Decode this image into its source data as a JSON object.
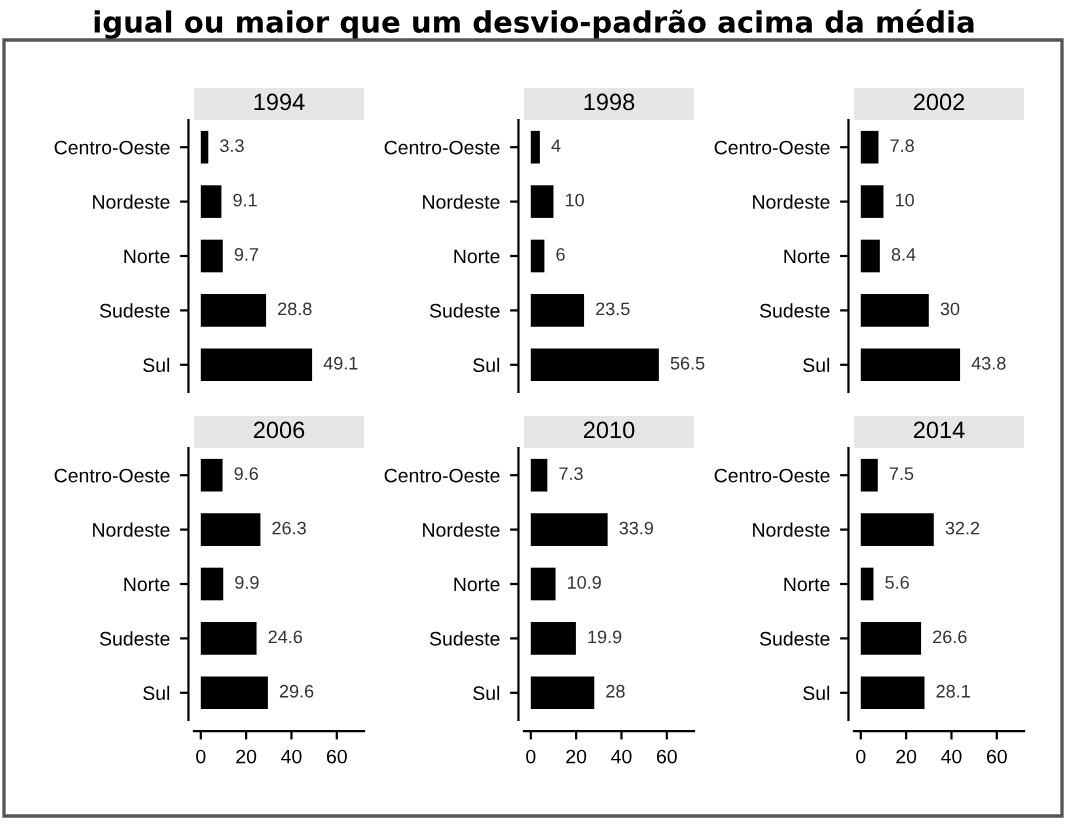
{
  "chart_data": [
    {
      "type": "bar",
      "orientation": "horizontal",
      "title": "1994",
      "annotations": [
        "igual ou maior que um desvio-padrão acima da média"
      ],
      "categories": [
        "Centro-Oeste",
        "Nordeste",
        "Norte",
        "Sudeste",
        "Sul"
      ],
      "values": [
        3.3,
        9.1,
        9.7,
        28.8,
        49.1
      ],
      "color": "#000000",
      "tick_labels": "y",
      "data_labels": true,
      "grid": false,
      "legend": false
    },
    {
      "type": "bar",
      "orientation": "horizontal",
      "title": "1998",
      "categories": [
        "Centro-Oeste",
        "Nordeste",
        "Norte",
        "Sudeste",
        "Sul"
      ],
      "values": [
        4,
        10,
        6,
        23.5,
        56.5
      ],
      "color": "#000000",
      "tick_labels": "y",
      "data_labels": true,
      "grid": false,
      "legend": false
    },
    {
      "type": "bar",
      "orientation": "horizontal",
      "title": "2002",
      "categories": [
        "Centro-Oeste",
        "Nordeste",
        "Norte",
        "Sudeste",
        "Sul"
      ],
      "values": [
        7.8,
        10,
        8.4,
        30,
        43.8
      ],
      "color": "#000000",
      "tick_labels": "y",
      "data_labels": true,
      "grid": false,
      "legend": false
    },
    {
      "type": "bar",
      "orientation": "horizontal",
      "title": "2006",
      "categories": [
        "Centro-Oeste",
        "Nordeste",
        "Norte",
        "Sudeste",
        "Sul"
      ],
      "values": [
        9.6,
        26.3,
        9.9,
        24.6,
        29.6
      ],
      "color": "#000000",
      "xlim": [
        -3,
        72
      ],
      "xticks": [
        0,
        20,
        40,
        60
      ],
      "data_labels": true,
      "grid": false,
      "legend": false
    },
    {
      "type": "bar",
      "orientation": "horizontal",
      "title": "2010",
      "categories": [
        "Centro-Oeste",
        "Nordeste",
        "Norte",
        "Sudeste",
        "Sul"
      ],
      "values": [
        7.3,
        33.9,
        10.9,
        19.9,
        28
      ],
      "color": "#000000",
      "xlim": [
        -3,
        72
      ],
      "xticks": [
        0,
        20,
        40,
        60
      ],
      "data_labels": true,
      "grid": false,
      "legend": false
    },
    {
      "type": "bar",
      "orientation": "horizontal",
      "title": "2014",
      "categories": [
        "Centro-Oeste",
        "Nordeste",
        "Norte",
        "Sudeste",
        "Sul"
      ],
      "values": [
        7.5,
        32.2,
        5.6,
        26.6,
        28.1
      ],
      "color": "#000000",
      "xlim": [
        -3,
        72
      ],
      "xticks": [
        0,
        20,
        40,
        60
      ],
      "data_labels": true,
      "grid": false,
      "legend": false
    }
  ]
}
